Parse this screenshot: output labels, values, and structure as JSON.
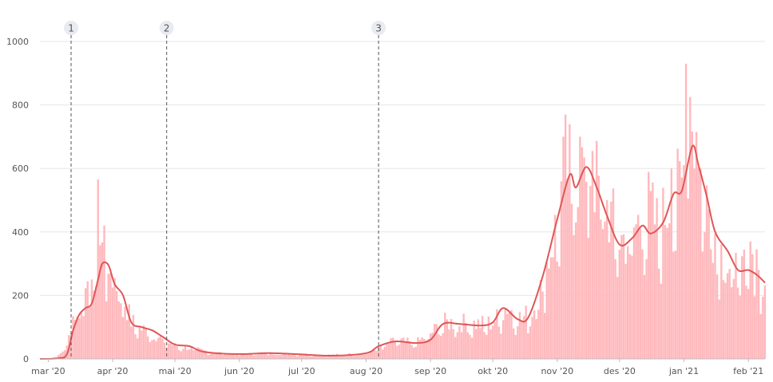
{
  "chart_data": {
    "type": "bar",
    "title": "",
    "xlabel": "",
    "ylabel": "",
    "ylim": [
      0,
      1000
    ],
    "yticks": [
      0,
      200,
      400,
      600,
      800,
      1000
    ],
    "grid": true,
    "x_start": "2020-02-26",
    "x_end": "2021-02-09",
    "xtick_labels": [
      {
        "date": "2020-03-01",
        "label": "mar '20"
      },
      {
        "date": "2020-04-01",
        "label": "apr '20"
      },
      {
        "date": "2020-05-01",
        "label": "mai '20"
      },
      {
        "date": "2020-06-01",
        "label": "jun '20"
      },
      {
        "date": "2020-07-01",
        "label": "jul '20"
      },
      {
        "date": "2020-08-01",
        "label": "aug '20"
      },
      {
        "date": "2020-09-01",
        "label": "sep '20"
      },
      {
        "date": "2020-10-01",
        "label": "okt '20"
      },
      {
        "date": "2020-11-01",
        "label": "nov '20"
      },
      {
        "date": "2020-12-01",
        "label": "des '20"
      },
      {
        "date": "2021-01-01",
        "label": "jan '21"
      },
      {
        "date": "2021-02-01",
        "label": "feb '21"
      }
    ],
    "markers": [
      {
        "label": "1",
        "date": "2020-03-12"
      },
      {
        "label": "2",
        "date": "2020-04-27"
      },
      {
        "label": "3",
        "date": "2020-08-07"
      }
    ],
    "series": [
      {
        "kind": "bars",
        "color": "#ffb9bd",
        "anchors": [
          [
            "2020-02-26",
            0
          ],
          [
            "2020-03-05",
            6
          ],
          [
            "2020-03-09",
            35
          ],
          [
            "2020-03-12",
            95
          ],
          [
            "2020-03-15",
            180
          ],
          [
            "2020-03-19",
            180
          ],
          [
            "2020-03-23",
            240
          ],
          [
            "2020-03-26",
            350
          ],
          [
            "2020-03-29",
            310
          ],
          [
            "2020-04-02",
            250
          ],
          [
            "2020-04-06",
            200
          ],
          [
            "2020-04-10",
            120
          ],
          [
            "2020-04-15",
            95
          ],
          [
            "2020-04-20",
            85
          ],
          [
            "2020-04-25",
            60
          ],
          [
            "2020-05-01",
            42
          ],
          [
            "2020-05-10",
            32
          ],
          [
            "2020-05-20",
            20
          ],
          [
            "2020-06-01",
            15
          ],
          [
            "2020-06-15",
            18
          ],
          [
            "2020-07-01",
            15
          ],
          [
            "2020-07-15",
            12
          ],
          [
            "2020-08-01",
            18
          ],
          [
            "2020-08-07",
            35
          ],
          [
            "2020-08-15",
            58
          ],
          [
            "2020-08-25",
            50
          ],
          [
            "2020-09-01",
            80
          ],
          [
            "2020-09-07",
            115
          ],
          [
            "2020-09-15",
            115
          ],
          [
            "2020-09-25",
            110
          ],
          [
            "2020-10-01",
            115
          ],
          [
            "2020-10-08",
            165
          ],
          [
            "2020-10-15",
            125
          ],
          [
            "2020-10-22",
            170
          ],
          [
            "2020-10-27",
            300
          ],
          [
            "2020-11-01",
            430
          ],
          [
            "2020-11-05",
            620
          ],
          [
            "2020-11-10",
            560
          ],
          [
            "2020-11-15",
            620
          ],
          [
            "2020-11-20",
            560
          ],
          [
            "2020-11-25",
            480
          ],
          [
            "2020-12-01",
            380
          ],
          [
            "2020-12-05",
            380
          ],
          [
            "2020-12-10",
            430
          ],
          [
            "2020-12-15",
            480
          ],
          [
            "2020-12-20",
            410
          ],
          [
            "2020-12-25",
            500
          ],
          [
            "2020-12-31",
            540
          ],
          [
            "2021-01-04",
            780
          ],
          [
            "2021-01-07",
            620
          ],
          [
            "2021-01-10",
            560
          ],
          [
            "2021-01-15",
            420
          ],
          [
            "2021-01-20",
            320
          ],
          [
            "2021-01-25",
            280
          ],
          [
            "2021-01-31",
            270
          ],
          [
            "2021-02-05",
            270
          ],
          [
            "2021-02-09",
            250
          ]
        ],
        "highlights": [
          [
            "2020-03-25",
            565
          ],
          [
            "2020-03-28",
            420
          ],
          [
            "2020-03-22",
            250
          ],
          [
            "2020-11-04",
            700
          ],
          [
            "2020-11-12",
            700
          ],
          [
            "2020-11-18",
            655
          ],
          [
            "2021-01-02",
            930
          ],
          [
            "2021-01-04",
            825
          ],
          [
            "2021-01-07",
            715
          ],
          [
            "2020-12-26",
            600
          ],
          [
            "2021-02-05",
            345
          ],
          [
            "2021-02-02",
            370
          ]
        ]
      },
      {
        "kind": "line",
        "color": "#e05656",
        "points": [
          [
            "2020-02-26",
            0
          ],
          [
            "2020-03-06",
            2
          ],
          [
            "2020-03-10",
            15
          ],
          [
            "2020-03-13",
            90
          ],
          [
            "2020-03-16",
            140
          ],
          [
            "2020-03-19",
            160
          ],
          [
            "2020-03-22",
            175
          ],
          [
            "2020-03-25",
            250
          ],
          [
            "2020-03-27",
            300
          ],
          [
            "2020-03-30",
            295
          ],
          [
            "2020-04-02",
            235
          ],
          [
            "2020-04-06",
            200
          ],
          [
            "2020-04-10",
            115
          ],
          [
            "2020-04-15",
            100
          ],
          [
            "2020-04-20",
            90
          ],
          [
            "2020-04-25",
            70
          ],
          [
            "2020-05-01",
            45
          ],
          [
            "2020-05-08",
            40
          ],
          [
            "2020-05-15",
            22
          ],
          [
            "2020-06-01",
            15
          ],
          [
            "2020-06-15",
            18
          ],
          [
            "2020-07-01",
            14
          ],
          [
            "2020-07-15",
            10
          ],
          [
            "2020-08-01",
            18
          ],
          [
            "2020-08-07",
            40
          ],
          [
            "2020-08-15",
            55
          ],
          [
            "2020-08-25",
            50
          ],
          [
            "2020-09-01",
            60
          ],
          [
            "2020-09-07",
            110
          ],
          [
            "2020-09-15",
            110
          ],
          [
            "2020-09-25",
            105
          ],
          [
            "2020-10-01",
            115
          ],
          [
            "2020-10-06",
            160
          ],
          [
            "2020-10-13",
            125
          ],
          [
            "2020-10-18",
            130
          ],
          [
            "2020-10-25",
            260
          ],
          [
            "2020-11-01",
            440
          ],
          [
            "2020-11-07",
            580
          ],
          [
            "2020-11-10",
            540
          ],
          [
            "2020-11-15",
            605
          ],
          [
            "2020-11-20",
            540
          ],
          [
            "2020-11-25",
            450
          ],
          [
            "2020-12-01",
            360
          ],
          [
            "2020-12-07",
            380
          ],
          [
            "2020-12-12",
            420
          ],
          [
            "2020-12-16",
            395
          ],
          [
            "2020-12-22",
            430
          ],
          [
            "2020-12-27",
            520
          ],
          [
            "2020-12-31",
            530
          ],
          [
            "2021-01-05",
            670
          ],
          [
            "2021-01-08",
            610
          ],
          [
            "2021-01-12",
            510
          ],
          [
            "2021-01-16",
            400
          ],
          [
            "2021-01-22",
            340
          ],
          [
            "2021-01-27",
            280
          ],
          [
            "2021-02-01",
            280
          ],
          [
            "2021-02-05",
            265
          ],
          [
            "2021-02-09",
            240
          ]
        ]
      }
    ]
  }
}
